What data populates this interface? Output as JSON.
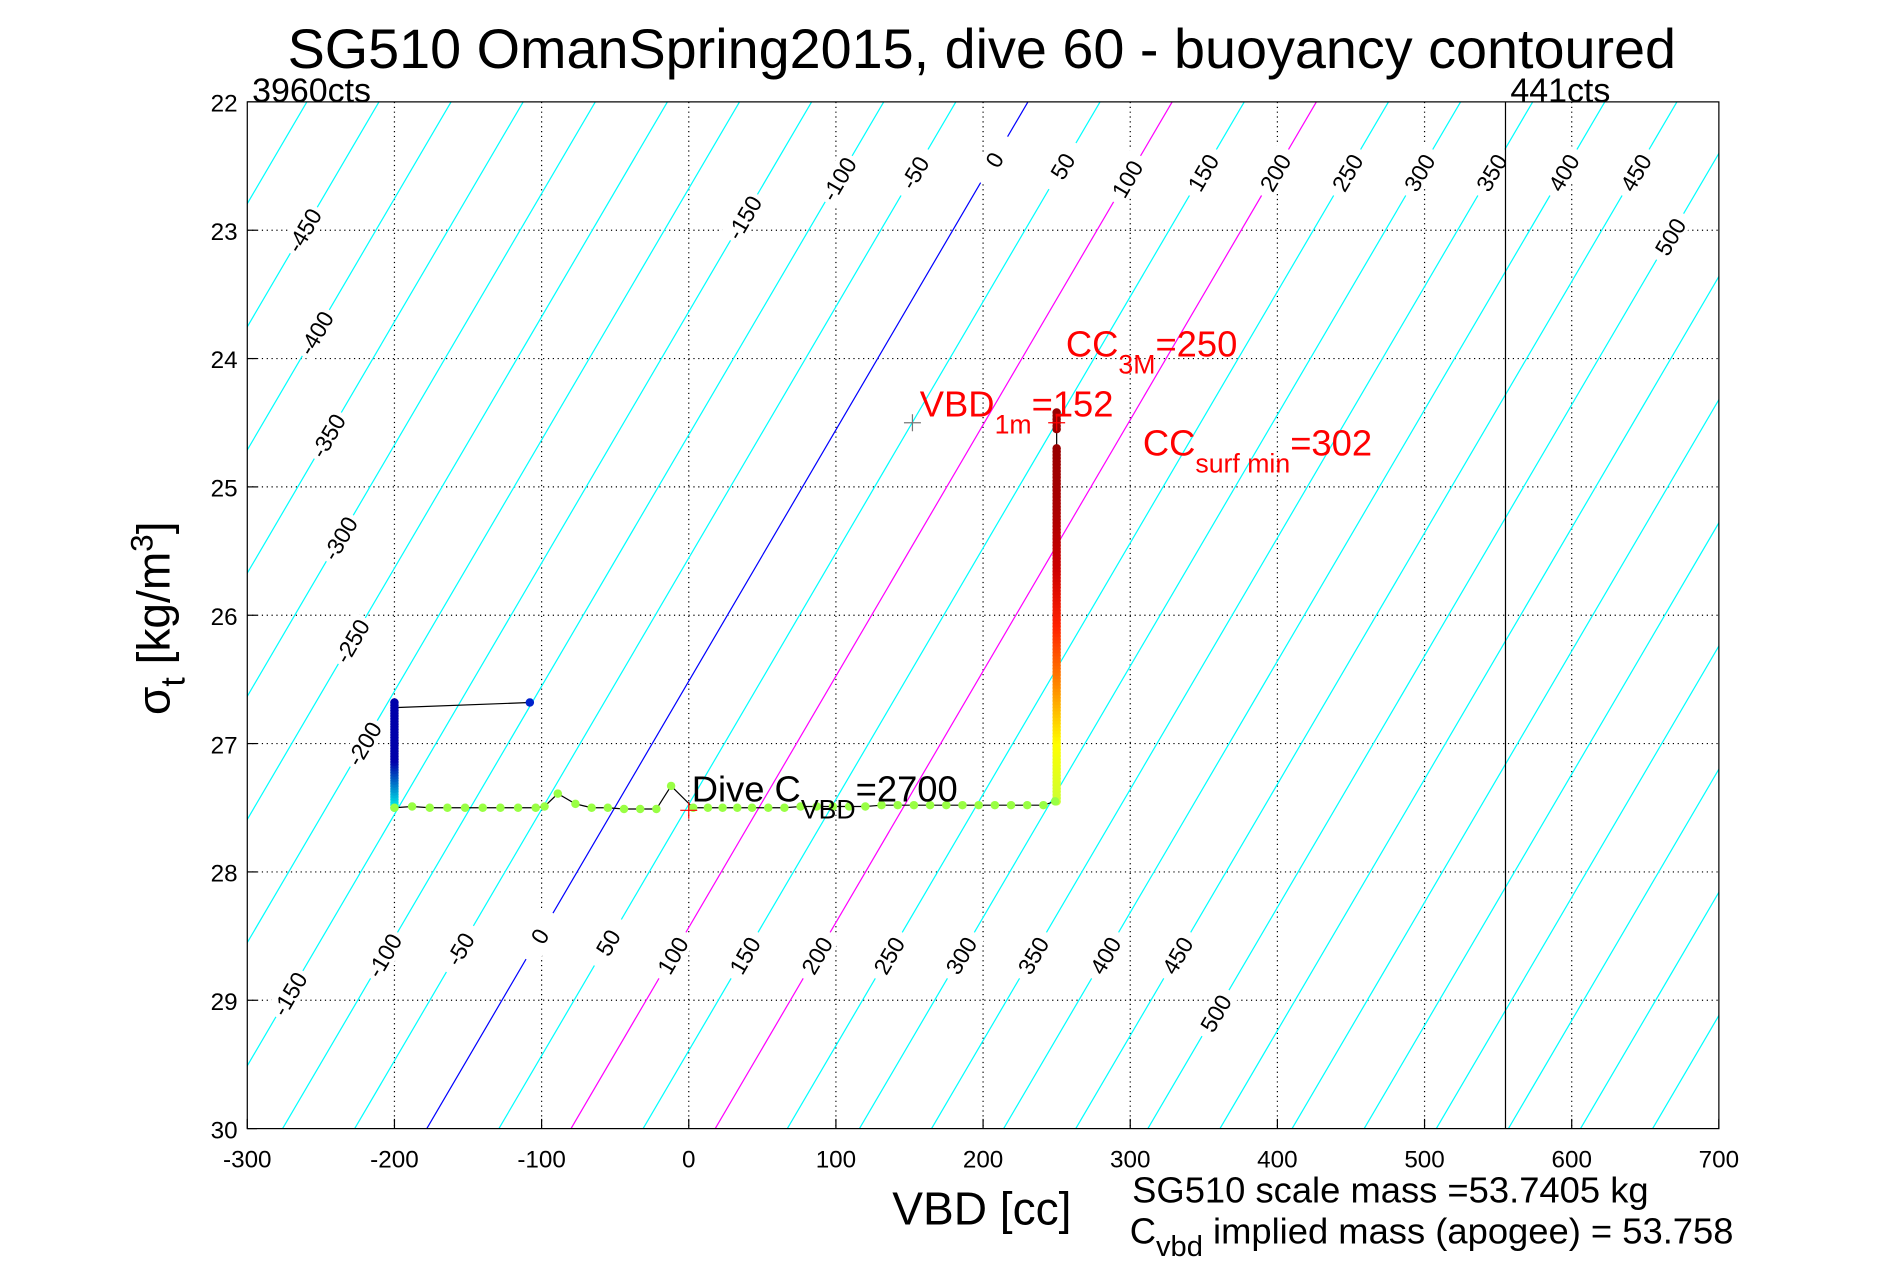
{
  "chart_data": {
    "type": "scatter",
    "title": "SG510 OmanSpring2015, dive 60 - buoyancy contoured",
    "xlabel": "VBD [cc]",
    "ylabel": {
      "main": "σ",
      "sub": "t",
      "unit": " [kg/m",
      "sup": "3",
      "close": "]"
    },
    "xlim": [
      -300,
      700
    ],
    "ylim": [
      30,
      22
    ],
    "y_reversed": true,
    "grid": true,
    "xticks": [
      "-300",
      "-200",
      "-100",
      "0",
      "100",
      "200",
      "300",
      "400",
      "500",
      "600",
      "700"
    ],
    "xtick_values": [
      -300,
      -200,
      -100,
      0,
      100,
      200,
      300,
      400,
      500,
      600,
      700
    ],
    "yticks": [
      "22",
      "23",
      "24",
      "25",
      "26",
      "27",
      "28",
      "29",
      "30"
    ],
    "ytick_values": [
      22,
      23,
      24,
      25,
      26,
      27,
      28,
      29,
      30
    ],
    "counts_left": "3960cts",
    "counts_right": "441cts",
    "counts_right_vbd": 555,
    "contours": {
      "levels_min": -650,
      "levels_max": 1100,
      "step": 50,
      "vbd_at_sigma30_level0": -178,
      "cc_per_level": 0.98,
      "cc_per_sigma": 51.06,
      "colors": {
        "default": "#00ffff",
        "zero": "#0000ff",
        "highlight": "#ff00ff"
      },
      "highlight_levels": [
        100,
        200
      ],
      "labels_upper": [
        {
          "level": -450,
          "text": "-450",
          "sigma": 23.0
        },
        {
          "level": -400,
          "text": "-400",
          "sigma": 23.8
        },
        {
          "level": -350,
          "text": "-350",
          "sigma": 24.6
        },
        {
          "level": -300,
          "text": "-300",
          "sigma": 25.4
        },
        {
          "level": -250,
          "text": "-250",
          "sigma": 26.2
        },
        {
          "level": -200,
          "text": "-200",
          "sigma": 27.0
        },
        {
          "level": -150,
          "text": "-150",
          "sigma": 22.9
        },
        {
          "level": -100,
          "text": "-100",
          "sigma": 22.6
        },
        {
          "level": -50,
          "text": "-50",
          "sigma": 22.55
        },
        {
          "level": 0,
          "text": "0",
          "sigma": 22.45
        },
        {
          "level": 50,
          "text": "50",
          "sigma": 22.5
        },
        {
          "level": 100,
          "text": "100",
          "sigma": 22.6
        },
        {
          "level": 150,
          "text": "150",
          "sigma": 22.55
        },
        {
          "level": 200,
          "text": "200",
          "sigma": 22.55
        },
        {
          "level": 250,
          "text": "250",
          "sigma": 22.55
        },
        {
          "level": 300,
          "text": "300",
          "sigma": 22.55
        },
        {
          "level": 350,
          "text": "350",
          "sigma": 22.55
        },
        {
          "level": 400,
          "text": "400",
          "sigma": 22.55
        },
        {
          "level": 450,
          "text": "450",
          "sigma": 22.55
        },
        {
          "level": 500,
          "text": "500",
          "sigma": 23.05
        }
      ],
      "labels_lower": [
        {
          "level": -150,
          "text": "-150",
          "sigma": 28.95
        },
        {
          "level": -100,
          "text": "-100",
          "sigma": 28.65
        },
        {
          "level": -50,
          "text": "-50",
          "sigma": 28.6
        },
        {
          "level": 0,
          "text": "0",
          "sigma": 28.5
        },
        {
          "level": 50,
          "text": "50",
          "sigma": 28.55
        },
        {
          "level": 100,
          "text": "100",
          "sigma": 28.65
        },
        {
          "level": 150,
          "text": "150",
          "sigma": 28.65
        },
        {
          "level": 200,
          "text": "200",
          "sigma": 28.65
        },
        {
          "level": 250,
          "text": "250",
          "sigma": 28.65
        },
        {
          "level": 300,
          "text": "300",
          "sigma": 28.65
        },
        {
          "level": 350,
          "text": "350",
          "sigma": 28.65
        },
        {
          "level": 400,
          "text": "400",
          "sigma": 28.65
        },
        {
          "level": 450,
          "text": "450",
          "sigma": 28.65
        },
        {
          "level": 500,
          "text": "500",
          "sigma": 29.1
        }
      ]
    },
    "series": [
      {
        "name": "apogee-blue",
        "color_from": "#00ffee",
        "color_to": "#0000aa",
        "vbd": -200,
        "sigma_from": 27.5,
        "sigma_to": 26.68,
        "count": 40
      },
      {
        "name": "climb-red",
        "gradient": [
          "#ccff33",
          "#ffff00",
          "#ff8800",
          "#ff2200",
          "#cc0000",
          "#aa0000",
          "#990000"
        ],
        "vbd": 250,
        "sigma_from": 27.45,
        "sigma_to": 24.7,
        "count": 110
      },
      {
        "name": "surface-red",
        "color": "#990000",
        "vbd": 250,
        "sigma_from": 24.55,
        "sigma_to": 24.42,
        "count": 6
      }
    ],
    "green_points": {
      "color": "#99ff44",
      "points": [
        [
          -200,
          27.5
        ],
        [
          -188,
          27.49
        ],
        [
          -176,
          27.5
        ],
        [
          -164,
          27.5
        ],
        [
          -152,
          27.5
        ],
        [
          -140,
          27.5
        ],
        [
          -128,
          27.5
        ],
        [
          -116,
          27.5
        ],
        [
          -104,
          27.5
        ],
        [
          -98,
          27.49
        ],
        [
          -89,
          27.39
        ],
        [
          -77,
          27.47
        ],
        [
          -66,
          27.5
        ],
        [
          -55,
          27.5
        ],
        [
          -44,
          27.51
        ],
        [
          -33,
          27.51
        ],
        [
          -22,
          27.51
        ],
        [
          -12,
          27.33
        ],
        [
          3,
          27.5
        ],
        [
          13,
          27.5
        ],
        [
          23,
          27.5
        ],
        [
          33,
          27.5
        ],
        [
          43,
          27.5
        ],
        [
          54,
          27.5
        ],
        [
          65,
          27.5
        ],
        [
          76,
          27.49
        ],
        [
          87,
          27.49
        ],
        [
          98,
          27.49
        ],
        [
          109,
          27.49
        ],
        [
          120,
          27.49
        ],
        [
          131,
          27.48
        ],
        [
          142,
          27.48
        ],
        [
          153,
          27.48
        ],
        [
          164,
          27.48
        ],
        [
          175,
          27.48
        ],
        [
          186,
          27.48
        ],
        [
          197,
          27.48
        ],
        [
          208,
          27.48
        ],
        [
          219,
          27.48
        ],
        [
          230,
          27.48
        ],
        [
          241,
          27.48
        ],
        [
          249,
          27.45
        ]
      ]
    },
    "apogee_link": {
      "from": [
        -200,
        26.72
      ],
      "to": [
        -108,
        26.68
      ],
      "end_color": "#0022cc"
    },
    "markers": [
      {
        "name": "vbd-1m-marker",
        "vbd": 152,
        "sigma": 24.5,
        "color": "#777777"
      },
      {
        "name": "dive-cvbd-marker",
        "vbd": 0,
        "sigma": 27.52,
        "color": "#ff0000"
      },
      {
        "name": "cc-marker",
        "vbd": 250,
        "sigma": 24.5,
        "color": "#ff0000"
      }
    ],
    "annotations": {
      "vbd1m": {
        "main": "VBD",
        "sub": "1m",
        "rest": "=152",
        "vbd": 157,
        "sigma": 24.45,
        "color": "#ff0000"
      },
      "cc": {
        "main": "CC",
        "sub": "3M",
        "rest": "=250",
        "vbd": 253,
        "sigma": 24.4,
        "color": "#ff0000"
      },
      "ccsurf": {
        "main": "CC",
        "sub": "surf min",
        "rest": "=302",
        "vbd": 302,
        "sigma": 24.7,
        "color": "#ff0000"
      },
      "dive": {
        "main": "Dive C",
        "sub": "VBD",
        "rest": "=2700",
        "vbd": 2,
        "sigma": 27.45,
        "color": "#000000"
      }
    },
    "footer": {
      "scale_mass": "SG510 scale mass =53.7405 kg",
      "implied_main": "C",
      "implied_sub": "vbd",
      "implied_rest": " implied mass (apogee) = 53.758"
    }
  }
}
